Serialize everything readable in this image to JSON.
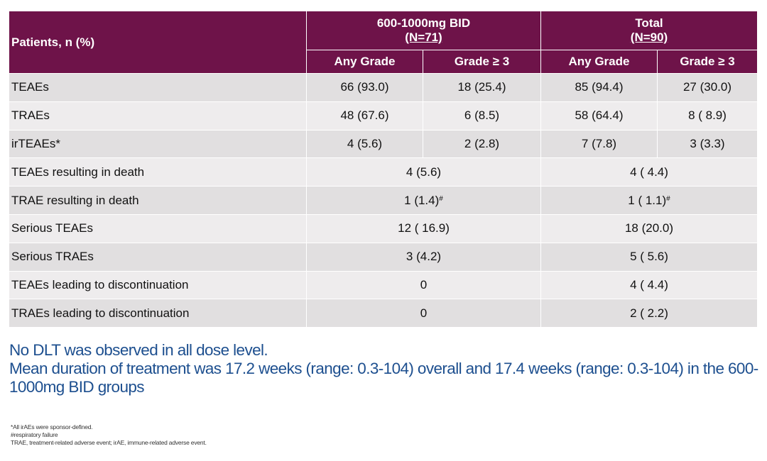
{
  "table": {
    "header": {
      "patients_label": "Patients, n (%)",
      "groups": [
        {
          "title": "600-1000mg BID",
          "n": "(N=71)"
        },
        {
          "title": "Total",
          "n": "(N=90)"
        }
      ],
      "subheaders": [
        "Any Grade",
        "Grade ≥ 3",
        "Any Grade",
        "Grade ≥ 3"
      ]
    },
    "rows": [
      {
        "label": "TEAEs",
        "cells": [
          "66 (93.0)",
          "18 (25.4)",
          "85 (94.4)",
          "27 (30.0)"
        ]
      },
      {
        "label": "TRAEs",
        "cells": [
          "48 (67.6)",
          "6 (8.5)",
          "58 (64.4)",
          "8 ( 8.9)"
        ]
      },
      {
        "label": "irTEAEs*",
        "cells": [
          "4 (5.6)",
          "2 (2.8)",
          "7 (7.8)",
          "3 (3.3)"
        ]
      },
      {
        "label": "TEAEs resulting in death",
        "merged": [
          "4 (5.6)",
          "4 ( 4.4)"
        ]
      },
      {
        "label": "TRAE resulting in death",
        "merged": [
          "1 (1.4)",
          "1 ( 1.1)"
        ],
        "merged_sup": [
          "#",
          "#"
        ]
      },
      {
        "label": "Serious TEAEs",
        "merged": [
          "12 ( 16.9)",
          "18 (20.0)"
        ]
      },
      {
        "label": "Serious TRAEs",
        "merged": [
          "3 (4.2)",
          "5 ( 5.6)"
        ]
      },
      {
        "label": "TEAEs leading to discontinuation",
        "merged": [
          "0",
          "4 ( 4.4)"
        ]
      },
      {
        "label": "TRAEs leading to discontinuation",
        "merged": [
          "0",
          "2 ( 2.2)"
        ]
      }
    ]
  },
  "summary": {
    "line1": "No DLT was observed in all dose level.",
    "line2": "Mean duration of treatment was 17.2 weeks (range: 0.3-104) overall and 17.4 weeks (range: 0.3-104) in the 600-1000mg BID groups"
  },
  "footnotes": [
    "*All irAEs were sponsor-defined.",
    "#respiratory failure",
    "TRAE, treatment-related adverse event; irAE, immune-related adverse event."
  ],
  "colors": {
    "header_bg": "#6e1349",
    "row_odd": "#e1dfe0",
    "row_even": "#eeeced",
    "summary_text": "#1d4f8f"
  }
}
